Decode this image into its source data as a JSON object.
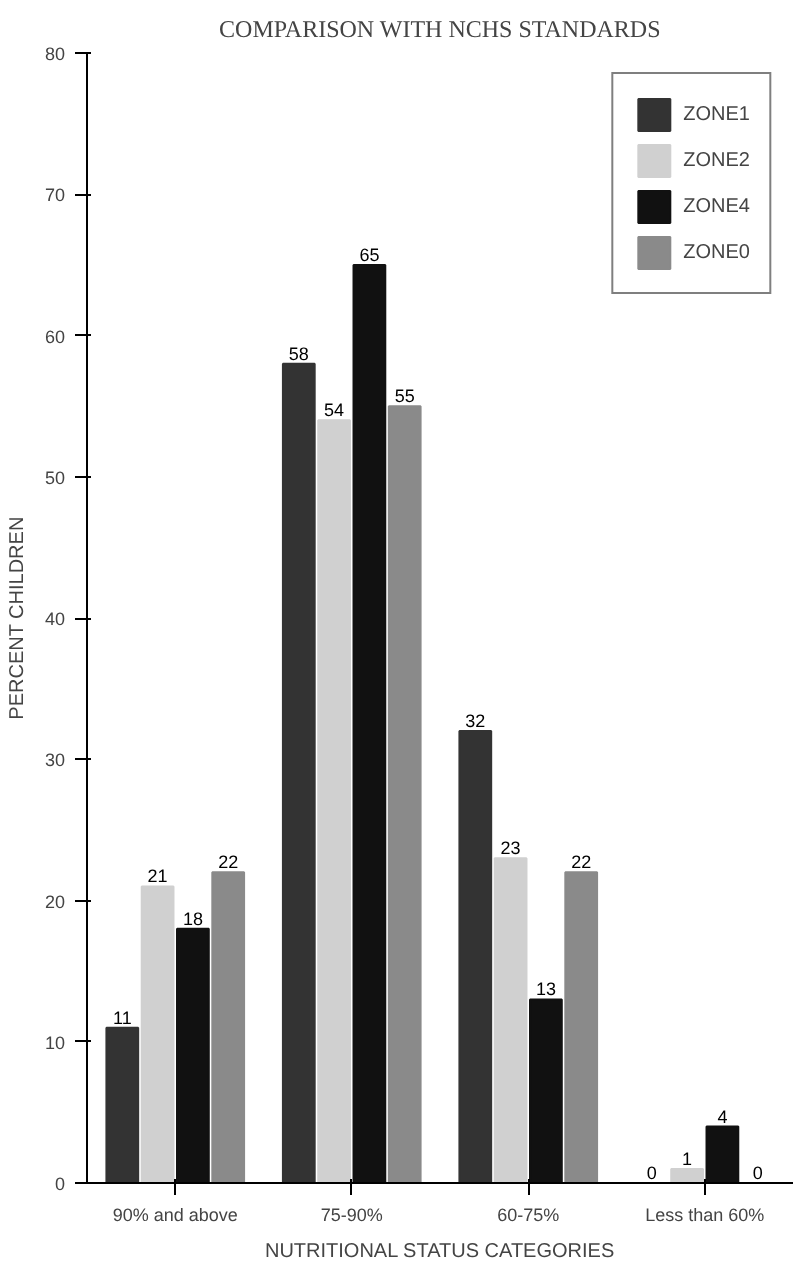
{
  "chart_data": {
    "type": "bar",
    "title": "COMPARISON WITH NCHS STANDARDS",
    "xlabel": "NUTRITIONAL STATUS CATEGORIES",
    "ylabel": "PERCENT CHILDREN",
    "categories": [
      "90% and above",
      "75-90%",
      "60-75%",
      "Less than 60%"
    ],
    "series": [
      {
        "name": "ZONE1",
        "color": "#333333",
        "values": [
          11,
          58,
          32,
          0
        ]
      },
      {
        "name": "ZONE2",
        "color": "#d0d0d0",
        "values": [
          21,
          54,
          23,
          1
        ]
      },
      {
        "name": "ZONE4",
        "color": "#111111",
        "values": [
          18,
          65,
          13,
          4
        ]
      },
      {
        "name": "ZONE0",
        "color": "#8a8a8a",
        "values": [
          22,
          55,
          22,
          0
        ]
      }
    ],
    "ylim": [
      0,
      80
    ],
    "yticks": [
      0,
      10,
      20,
      30,
      40,
      50,
      60,
      70,
      80
    ],
    "grid": false,
    "legend": "top right",
    "data_labels": true
  }
}
